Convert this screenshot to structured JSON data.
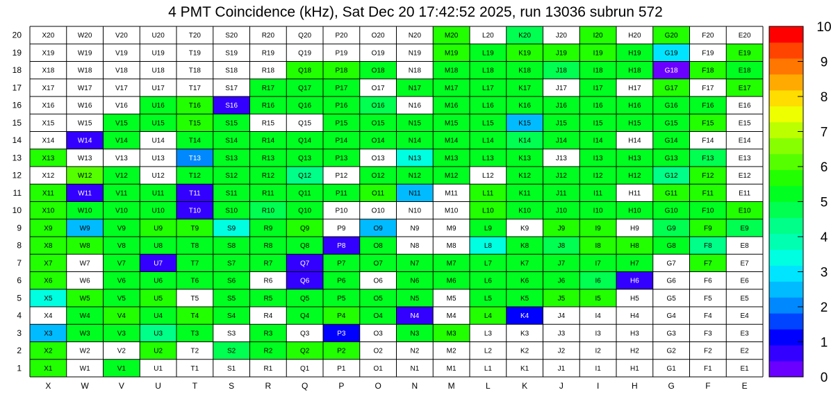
{
  "chart_data": {
    "type": "heatmap",
    "title": "4 PMT Coincidence (kHz), Sat Dec 20 17:42:52 2025, run 13036 subrun 572",
    "x_categories": [
      "X",
      "W",
      "V",
      "U",
      "T",
      "S",
      "R",
      "Q",
      "P",
      "O",
      "N",
      "M",
      "L",
      "K",
      "J",
      "I",
      "H",
      "G",
      "F",
      "E"
    ],
    "y_categories": [
      "1",
      "2",
      "3",
      "4",
      "5",
      "6",
      "7",
      "8",
      "9",
      "10",
      "11",
      "12",
      "13",
      "14",
      "15",
      "16",
      "17",
      "18",
      "19",
      "20"
    ],
    "zlim": [
      0,
      10
    ],
    "colorbar_ticks": [
      "0",
      "1",
      "2",
      "3",
      "4",
      "5",
      "6",
      "7",
      "8",
      "9",
      "10"
    ],
    "rows": {
      "20": [
        null,
        null,
        null,
        null,
        null,
        null,
        null,
        null,
        null,
        null,
        null,
        5.7,
        null,
        4.7,
        null,
        5.7,
        null,
        5.5,
        null,
        null
      ],
      "19": [
        null,
        null,
        null,
        null,
        null,
        null,
        null,
        null,
        null,
        null,
        null,
        5.6,
        5.4,
        5.6,
        5.8,
        5.7,
        5.4,
        2.8,
        null,
        5.7
      ],
      "18": [
        null,
        null,
        null,
        null,
        null,
        null,
        null,
        5.7,
        5.6,
        5.0,
        null,
        5.3,
        5.3,
        5.3,
        4.6,
        5.3,
        5.3,
        0.4,
        5.6,
        5.3
      ],
      "17": [
        null,
        null,
        null,
        null,
        null,
        null,
        5.4,
        5.1,
        5.2,
        null,
        5.1,
        5.2,
        5.3,
        5.1,
        null,
        5.1,
        null,
        5.6,
        null,
        5.7
      ],
      "16": [
        null,
        null,
        null,
        5.2,
        5.6,
        0.5,
        5.2,
        5.1,
        5.1,
        4.8,
        null,
        5.3,
        5.2,
        5.0,
        5.1,
        5.1,
        5.1,
        5.0,
        5.0,
        null
      ],
      "15": [
        null,
        null,
        5.4,
        5.1,
        5.5,
        5.1,
        null,
        null,
        5.1,
        5.1,
        5.3,
        5.3,
        5.2,
        2.5,
        5.3,
        5.2,
        5.2,
        5.3,
        5.6,
        null
      ],
      "14": [
        null,
        0.5,
        5.2,
        null,
        5.2,
        5.1,
        5.1,
        5.0,
        5.1,
        5.1,
        5.2,
        5.2,
        5.1,
        4.7,
        5.2,
        5.2,
        null,
        5.3,
        null,
        null
      ],
      "13": [
        5.5,
        null,
        null,
        null,
        2.0,
        5.2,
        5.3,
        5.2,
        5.3,
        null,
        3.5,
        5.2,
        5.2,
        5.2,
        null,
        5.2,
        5.2,
        5.0,
        4.6,
        null
      ],
      "12": [
        null,
        6.1,
        5.3,
        null,
        5.1,
        5.1,
        5.1,
        4.4,
        null,
        5.1,
        5.1,
        5.1,
        null,
        5.1,
        5.2,
        5.2,
        5.3,
        4.5,
        5.6,
        null
      ],
      "11": [
        5.8,
        0.5,
        5.2,
        5.2,
        0.5,
        5.2,
        5.2,
        5.1,
        5.4,
        5.7,
        2.5,
        null,
        5.6,
        5.3,
        5.2,
        5.3,
        null,
        5.5,
        5.6,
        null
      ],
      "10": [
        5.5,
        5.3,
        5.2,
        5.1,
        0.5,
        5.1,
        4.9,
        5.2,
        null,
        null,
        null,
        null,
        5.7,
        5.2,
        5.4,
        5.4,
        5.4,
        5.2,
        5.3,
        5.5
      ],
      "9": [
        5.9,
        2.6,
        5.2,
        5.5,
        5.5,
        3.6,
        5.3,
        5.7,
        null,
        2.6,
        null,
        null,
        5.0,
        null,
        5.6,
        5.6,
        null,
        4.7,
        5.8,
        4.6
      ],
      "8": [
        5.7,
        5.6,
        5.2,
        5.4,
        5.4,
        5.3,
        5.2,
        5.3,
        0.5,
        5.2,
        null,
        null,
        3.5,
        5.2,
        4.8,
        5.5,
        5.6,
        5.0,
        4.3,
        null
      ],
      "7": [
        5.6,
        null,
        5.4,
        0.5,
        5.2,
        5.2,
        5.4,
        0.5,
        5.3,
        5.2,
        5.3,
        5.3,
        5.2,
        5.2,
        5.3,
        5.3,
        5.4,
        null,
        5.6,
        null
      ],
      "6": [
        5.9,
        null,
        5.2,
        5.2,
        5.2,
        5.3,
        null,
        0.5,
        5.2,
        null,
        5.2,
        5.3,
        5.2,
        5.2,
        5.3,
        4.7,
        0.5,
        null,
        null,
        null
      ],
      "5": [
        3.6,
        5.5,
        5.4,
        5.8,
        null,
        5.2,
        5.3,
        5.4,
        5.4,
        5.4,
        5.2,
        null,
        5.3,
        5.2,
        5.7,
        5.7,
        null,
        null,
        null,
        null
      ],
      "4": [
        null,
        5.4,
        5.5,
        5.3,
        5.6,
        5.2,
        null,
        5.3,
        5.5,
        5.4,
        0.5,
        null,
        5.5,
        1.2,
        null,
        null,
        null,
        null,
        null,
        null
      ],
      "3": [
        2.7,
        5.3,
        5.2,
        4.4,
        5.2,
        null,
        5.3,
        null,
        1.0,
        null,
        5.3,
        5.5,
        null,
        null,
        null,
        null,
        null,
        null,
        null,
        null
      ],
      "2": [
        5.6,
        null,
        null,
        5.7,
        null,
        4.8,
        5.3,
        5.5,
        5.6,
        null,
        null,
        null,
        null,
        null,
        null,
        null,
        null,
        null,
        null,
        null
      ],
      "1": [
        5.6,
        null,
        5.0,
        null,
        null,
        null,
        null,
        null,
        null,
        null,
        null,
        null,
        null,
        null,
        null,
        null,
        null,
        null,
        null,
        null
      ]
    },
    "colors": {
      "scale": [
        "#6a00ff",
        "#3300ff",
        "#0000ff",
        "#0044ff",
        "#0088ff",
        "#00bbff",
        "#00e5ff",
        "#00ffe0",
        "#00ffb0",
        "#00ff88",
        "#00ff50",
        "#00ff20",
        "#22ff00",
        "#55ff00",
        "#88ff00",
        "#bbff00",
        "#eeff00",
        "#ffdd00",
        "#ffaa00",
        "#ff7700",
        "#ff4400",
        "#ff0000"
      ]
    }
  }
}
